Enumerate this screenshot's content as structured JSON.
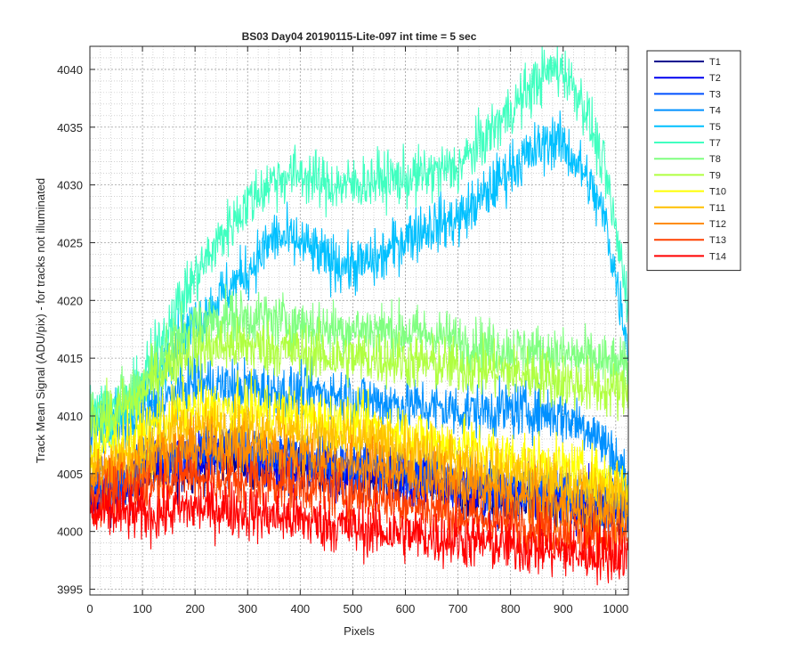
{
  "chart_data": {
    "type": "line",
    "title": "BS03 Day04 20190115-Lite-097 int time = 5 sec",
    "xlabel": "Pixels",
    "ylabel": "Track Mean Signal (ADU/pix) - for tracks not illuminated",
    "xlim": [
      0,
      1024
    ],
    "ylim": [
      3994.5,
      4042
    ],
    "xticks": [
      0,
      100,
      200,
      300,
      400,
      500,
      600,
      700,
      800,
      900,
      1000
    ],
    "yticks": [
      3995,
      4000,
      4005,
      4010,
      4015,
      4020,
      4025,
      4030,
      4035,
      4040
    ],
    "x_tick_labels": [
      "0",
      "100",
      "200",
      "300",
      "400",
      "500",
      "600",
      "700",
      "800",
      "900",
      "1000"
    ],
    "y_tick_labels": [
      "3995",
      "4000",
      "4005",
      "4010",
      "4015",
      "4020",
      "4025",
      "4030",
      "4035",
      "4040"
    ],
    "grid": true,
    "minor_grid": true,
    "legend_position": "outside-right",
    "noise_amplitude_adu": 1.6,
    "series": [
      {
        "name": "T1",
        "color": "#00008f",
        "x": [
          0,
          40,
          80,
          120,
          150,
          200,
          260,
          330,
          400,
          470,
          550,
          650,
          750,
          850,
          950,
          1024
        ],
        "y": [
          4003,
          4003.5,
          4004,
          4006,
          4005,
          4006,
          4006.5,
          4005.5,
          4005.5,
          4005,
          4004.5,
          4004,
          4003,
          4002.5,
          4002,
          4001.5
        ]
      },
      {
        "name": "T2",
        "color": "#0000ef",
        "x": [
          0,
          40,
          80,
          120,
          150,
          200,
          260,
          330,
          400,
          470,
          550,
          650,
          750,
          850,
          950,
          1024
        ],
        "y": [
          4003.5,
          4004,
          4004.5,
          4006.5,
          4005.5,
          4006.5,
          4007,
          4006,
          4006,
          4005.5,
          4005,
          4004.5,
          4003.5,
          4003,
          4002.5,
          4002
        ]
      },
      {
        "name": "T3",
        "color": "#0050ff",
        "x": [
          0,
          40,
          80,
          120,
          150,
          200,
          260,
          330,
          400,
          470,
          550,
          650,
          750,
          850,
          950,
          1024
        ],
        "y": [
          4004,
          4004.5,
          4005,
          4007,
          4006,
          4007,
          4007.5,
          4006.5,
          4006.5,
          4006,
          4005.5,
          4005,
          4004,
          4003.5,
          4003,
          4002.5
        ]
      },
      {
        "name": "T4",
        "color": "#0090ff",
        "x": [
          0,
          40,
          80,
          150,
          200,
          250,
          300,
          350,
          400,
          450,
          500,
          600,
          700,
          800,
          850,
          900,
          950,
          1000,
          1024
        ],
        "y": [
          4009.5,
          4009,
          4009,
          4011.5,
          4013,
          4012.5,
          4012.5,
          4012,
          4012,
          4012,
          4011.5,
          4011,
          4010.5,
          4010.5,
          4010.5,
          4010,
          4009,
          4006.5,
          4004
        ]
      },
      {
        "name": "T5",
        "color": "#00c0ff",
        "x": [
          0,
          40,
          80,
          120,
          160,
          200,
          250,
          300,
          350,
          400,
          450,
          500,
          550,
          600,
          650,
          700,
          750,
          800,
          850,
          880,
          900,
          940,
          980,
          1000,
          1024
        ],
        "y": [
          4010,
          4009.5,
          4010.5,
          4013,
          4016,
          4018,
          4020.5,
          4022.5,
          4025.5,
          4025,
          4023.5,
          4023,
          4023.5,
          4025.5,
          4026.5,
          4027,
          4029,
          4031.5,
          4033,
          4034,
          4033.5,
          4031,
          4027,
          4022,
          4016
        ]
      },
      {
        "name": "T7",
        "color": "#40ffc0",
        "x": [
          0,
          40,
          80,
          120,
          160,
          200,
          250,
          300,
          350,
          400,
          450,
          500,
          550,
          600,
          650,
          700,
          750,
          800,
          850,
          880,
          900,
          940,
          980,
          1000,
          1024
        ],
        "y": [
          4011,
          4010.5,
          4011.5,
          4015,
          4019,
          4022,
          4025.5,
          4028.5,
          4030.5,
          4031,
          4030,
          4030,
          4030.5,
          4030.5,
          4031,
          4031.5,
          4034,
          4036.5,
          4039,
          4040,
          4040,
          4037,
          4031,
          4026,
          4020
        ]
      },
      {
        "name": "T8",
        "color": "#80ff80",
        "x": [
          0,
          40,
          80,
          130,
          180,
          250,
          320,
          400,
          470,
          550,
          650,
          750,
          850,
          950,
          1024
        ],
        "y": [
          4010.5,
          4010.5,
          4012,
          4015,
          4017.5,
          4018.5,
          4018.5,
          4018,
          4017.5,
          4017.5,
          4017,
          4016,
          4015.5,
          4015,
          4014
        ]
      },
      {
        "name": "T9",
        "color": "#b0ff40",
        "x": [
          0,
          40,
          80,
          130,
          180,
          250,
          320,
          400,
          470,
          550,
          650,
          750,
          850,
          950,
          1024
        ],
        "y": [
          4009.5,
          4010,
          4011,
          4013.5,
          4015.5,
          4016,
          4016,
          4015.5,
          4015,
          4015,
          4014.5,
          4014,
          4013.5,
          4012.5,
          4012
        ]
      },
      {
        "name": "T10",
        "color": "#ffff00",
        "x": [
          0,
          40,
          80,
          130,
          180,
          250,
          320,
          400,
          470,
          550,
          650,
          750,
          850,
          950,
          1024
        ],
        "y": [
          4007,
          4007.5,
          4008,
          4009.5,
          4010.5,
          4010.5,
          4010.5,
          4010,
          4009.5,
          4009,
          4008,
          4007,
          4006,
          4005,
          4004
        ]
      },
      {
        "name": "T11",
        "color": "#ffc000",
        "x": [
          0,
          40,
          80,
          130,
          180,
          250,
          320,
          400,
          470,
          550,
          650,
          750,
          850,
          950,
          1024
        ],
        "y": [
          4005.5,
          4006,
          4006.5,
          4008,
          4009,
          4009,
          4009,
          4008.5,
          4008,
          4007.5,
          4006.5,
          4005.5,
          4004.5,
          4003.5,
          4003
        ]
      },
      {
        "name": "T12",
        "color": "#ff8c00",
        "x": [
          0,
          40,
          80,
          130,
          180,
          250,
          320,
          400,
          470,
          550,
          650,
          750,
          850,
          950,
          1024
        ],
        "y": [
          4004.5,
          4005,
          4005.5,
          4006.5,
          4007,
          4007,
          4007,
          4006.5,
          4006,
          4005.5,
          4004.5,
          4003.5,
          4002.5,
          4001.5,
          4001
        ]
      },
      {
        "name": "T13",
        "color": "#ff4000",
        "x": [
          0,
          40,
          80,
          130,
          180,
          250,
          320,
          400,
          470,
          550,
          650,
          750,
          850,
          950,
          1024
        ],
        "y": [
          4003,
          4003.5,
          4003.5,
          4004.5,
          4005,
          4004.5,
          4004.5,
          4004,
          4003.5,
          4003,
          4002,
          4001,
          4000.5,
          3999.5,
          3999.5
        ]
      },
      {
        "name": "T14",
        "color": "#ff0000",
        "x": [
          0,
          40,
          80,
          130,
          180,
          250,
          320,
          400,
          470,
          550,
          650,
          750,
          850,
          950,
          1024
        ],
        "y": [
          4001.5,
          4001.5,
          4001.5,
          4001.5,
          4002,
          4002,
          4001.5,
          4001,
          4000.5,
          4000,
          3999.5,
          3999,
          3998.5,
          3998,
          3998
        ]
      }
    ]
  }
}
